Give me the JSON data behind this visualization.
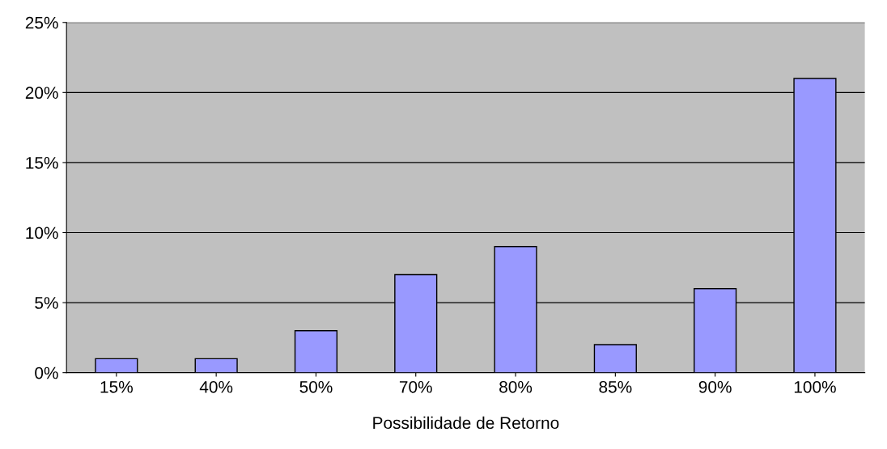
{
  "chart_data": {
    "type": "bar",
    "xlabel": "Possibilidade de Retorno",
    "categories": [
      "15%",
      "40%",
      "50%",
      "70%",
      "80%",
      "85%",
      "90%",
      "100%"
    ],
    "values": [
      1,
      1,
      3,
      7,
      9,
      2,
      6,
      21
    ],
    "color": "#9999ff",
    "ylim": [
      0,
      25
    ],
    "yticks": [
      {
        "value": 0,
        "label": "0%"
      },
      {
        "value": 5,
        "label": "5%"
      },
      {
        "value": 10,
        "label": "10%"
      },
      {
        "value": 15,
        "label": "15%"
      },
      {
        "value": 20,
        "label": "20%"
      },
      {
        "value": 25,
        "label": "25%"
      }
    ],
    "grid": "y"
  }
}
